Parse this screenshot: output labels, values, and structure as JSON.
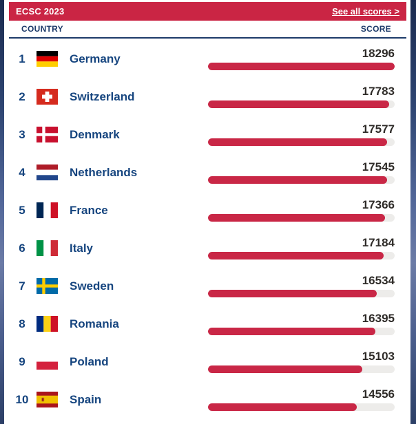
{
  "header": {
    "title": "ECSC 2023",
    "link_label": "See all scores >"
  },
  "columns": {
    "country": "COUNTRY",
    "score": "SCORE"
  },
  "colors": {
    "accent_red": "#CA2544",
    "bar_red": "#C92746",
    "track_gray": "#EDECEA",
    "navy_text": "#16457F",
    "header_navy": "#1C3A69",
    "score_text": "#2E2B28",
    "side_background_navy": "#2E4572"
  },
  "chart_data": {
    "type": "bar",
    "orientation": "horizontal",
    "title": "ECSC 2023",
    "categories": [
      "Germany",
      "Switzerland",
      "Denmark",
      "Netherlands",
      "France",
      "Italy",
      "Sweden",
      "Romania",
      "Poland",
      "Spain"
    ],
    "values": [
      18296,
      17783,
      17577,
      17545,
      17366,
      17184,
      16534,
      16395,
      15103,
      14556
    ],
    "ranks": [
      1,
      2,
      3,
      4,
      5,
      6,
      7,
      8,
      9,
      10
    ],
    "flag_icons": [
      "flag-germany",
      "flag-switzerland",
      "flag-denmark",
      "flag-netherlands",
      "flag-france",
      "flag-italy",
      "flag-sweden",
      "flag-romania",
      "flag-poland",
      "flag-spain"
    ],
    "xlabel": "SCORE",
    "ylabel": "COUNTRY",
    "xlim": [
      0,
      18296
    ],
    "grid": false,
    "legend": false,
    "value_labels": true
  }
}
